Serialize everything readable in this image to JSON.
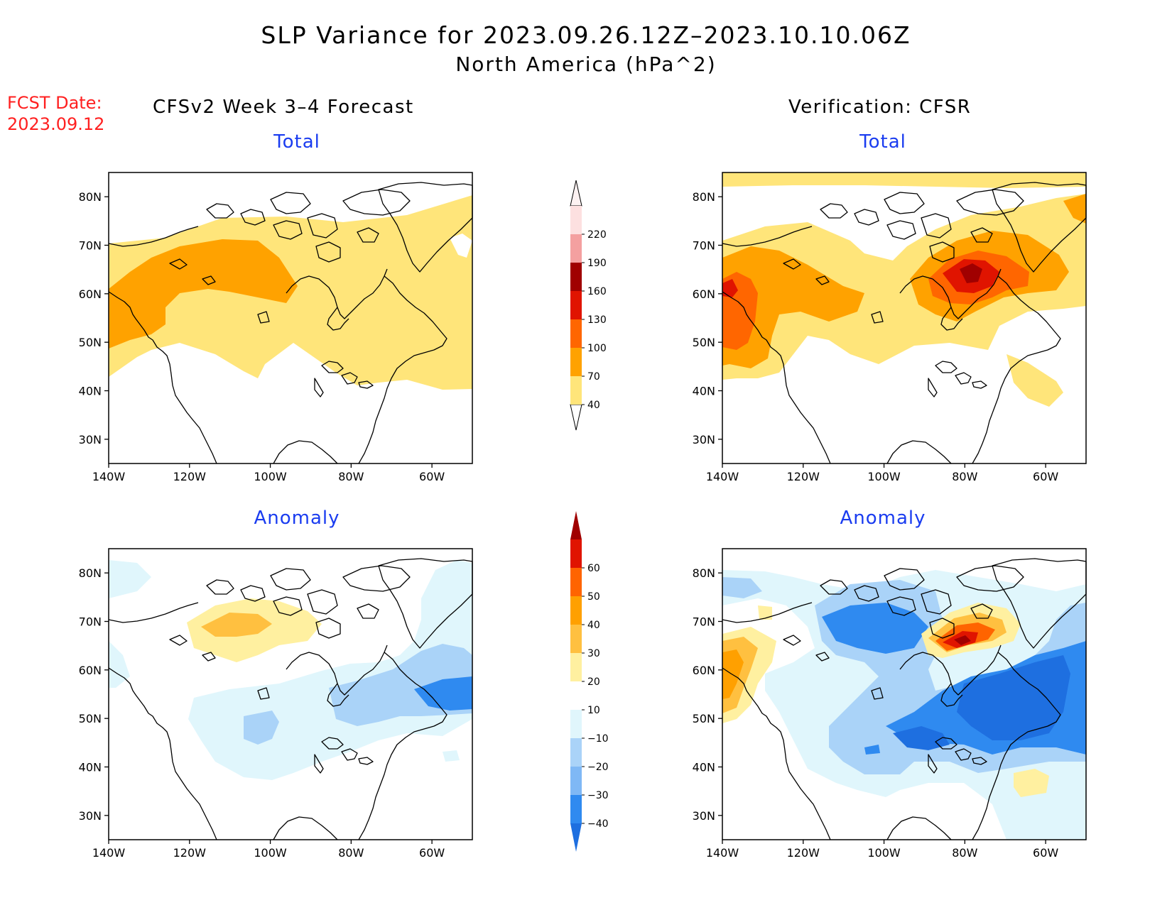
{
  "title": "SLP Variance for 2023.09.26.12Z–2023.10.10.06Z",
  "subtitle": "North America (hPa^2)",
  "fcst_date_label": "FCST Date:",
  "fcst_date_value": "2023.09.12",
  "left_heading": "CFSv2 Week 3–4 Forecast",
  "right_heading": "Verification: CFSR",
  "panels": {
    "forecast_total": {
      "title": "Total"
    },
    "verification_total": {
      "title": "Total"
    },
    "forecast_anomaly": {
      "title": "Anomaly"
    },
    "verification_anomaly": {
      "title": "Anomaly"
    }
  },
  "axes": {
    "lat_labels": [
      "80N",
      "70N",
      "60N",
      "50N",
      "40N",
      "30N"
    ],
    "lon_labels": [
      "140W",
      "120W",
      "100W",
      "80W",
      "60W"
    ]
  },
  "colorbars": {
    "total": {
      "levels": [
        "40",
        "70",
        "100",
        "130",
        "160",
        "190",
        "220"
      ],
      "colors": [
        "#ffe57a",
        "#ffa200",
        "#ff6600",
        "#e01400",
        "#a00000",
        "#f4a0a0",
        "#fde0e0"
      ]
    },
    "anomaly": {
      "levels": [
        "−40",
        "−30",
        "−20",
        "−10",
        "10",
        "20",
        "30",
        "40",
        "50",
        "60"
      ],
      "colors": [
        "#1e6fe0",
        "#2f8af0",
        "#7fb8f5",
        "#aad3f8",
        "#e0f6fc",
        "#ffffff",
        "#fff0a0",
        "#ffc040",
        "#ffa000",
        "#ff6400",
        "#e01400",
        "#a00000"
      ]
    }
  },
  "colors": {
    "title_text": "#000000",
    "fcst_text": "#ff2020",
    "panel_title_text": "#1a3cf0",
    "coastline": "#000000"
  }
}
